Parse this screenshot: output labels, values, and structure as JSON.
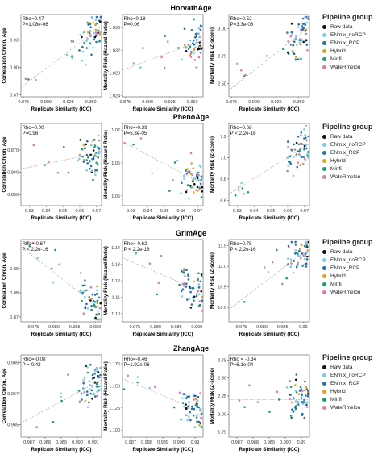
{
  "legend": {
    "title": "Pipeline group",
    "groups": [
      {
        "name": "Raw data",
        "color": "#111111"
      },
      {
        "name": "ENmix_noRCP",
        "color": "#7fcbe6"
      },
      {
        "name": "ENmix_RCP",
        "color": "#2470ad"
      },
      {
        "name": "Hybrid",
        "color": "#e3a024"
      },
      {
        "name": "Minfi",
        "color": "#1f9a6b"
      },
      {
        "name": "WateRmelon",
        "color": "#de7bb0"
      }
    ]
  },
  "chart_data": [
    {
      "clock": "HorvathAge",
      "xlabel": "Replicate Similarity (ICC)",
      "grid": false,
      "panels": [
        {
          "type": "scatter",
          "ylabel": "Correlation Chron. Age",
          "xlim": [
            0.872,
            0.962
          ],
          "ylim": [
            0.868,
            0.958
          ],
          "xticks": [
            0.875,
            0.9,
            0.925,
            0.95
          ],
          "xtick_labels": [
            "0.875",
            "0.900",
            "0.925",
            "0.950"
          ],
          "yticks": [
            0.87,
            0.9,
            0.93
          ],
          "ytick_labels": [
            "0.87",
            "0.90",
            "0.93"
          ],
          "stats": [
            "Rho=0.47",
            "P=1.08e-06"
          ],
          "trend": [
            [
              0.872,
              0.878
            ],
            [
              0.962,
              0.945
            ]
          ]
        },
        {
          "type": "scatter",
          "ylabel": "Mortality Risk (Hazard Ratio)",
          "xlim": [
            0.872,
            0.962
          ],
          "ylim": [
            1.0238,
            1.0383
          ],
          "xticks": [
            0.875,
            0.9,
            0.925,
            0.95
          ],
          "xtick_labels": [
            "0.875",
            "0.900",
            "0.925",
            "0.950"
          ],
          "yticks": [
            1.024,
            1.028,
            1.032,
            1.036
          ],
          "ytick_labels": [
            "1.024",
            "1.028",
            "1.032",
            "1.036"
          ],
          "stats": [
            "Rho=0.18",
            "P=0.06"
          ],
          "trend": [
            [
              0.872,
              1.0285
            ],
            [
              0.962,
              1.0338
            ]
          ]
        },
        {
          "type": "scatter",
          "ylabel": "Mortality Risk (Z-score)",
          "xlim": [
            0.872,
            0.962
          ],
          "ylim": [
            2.38,
            3.13
          ],
          "xticks": [
            0.875,
            0.9,
            0.925,
            0.95
          ],
          "xtick_labels": [
            "0.875",
            "0.900",
            "0.925",
            "0.950"
          ],
          "yticks": [
            2.5,
            2.75,
            3.0
          ],
          "ytick_labels": [
            "2.50",
            "2.75",
            "3.00"
          ],
          "stats": [
            "Rho=0.52",
            "P=3.3e-08"
          ],
          "trend": [
            [
              0.872,
              2.44
            ],
            [
              0.962,
              3.02
            ]
          ]
        }
      ]
    },
    {
      "clock": "PhenoAge",
      "xlabel": "Replicate Similarity (ICC)",
      "grid": false,
      "panels": [
        {
          "type": "scatter",
          "ylabel": "Correlation Chron. Age",
          "xlim": [
            0.925,
            0.973
          ],
          "ylim": [
            0.845,
            0.882
          ],
          "xticks": [
            0.93,
            0.94,
            0.95,
            0.96,
            0.97
          ],
          "xtick_labels": [
            "0.93",
            "0.94",
            "0.95",
            "0.96",
            "0.97"
          ],
          "yticks": [
            0.85,
            0.86,
            0.87
          ],
          "ytick_labels": [
            "0.850",
            "0.860",
            "0.870"
          ],
          "stats": [
            "Rho=0.00",
            "P=0.96"
          ],
          "trend": [
            [
              0.925,
              0.8615
            ],
            [
              0.973,
              0.869
            ]
          ]
        },
        {
          "type": "scatter",
          "ylabel": "Mortality Risk (Hazard Ratio)",
          "xlim": [
            0.925,
            0.973
          ],
          "ylim": [
            1.047,
            1.072
          ],
          "xticks": [
            0.93,
            0.94,
            0.95,
            0.96,
            0.97
          ],
          "xtick_labels": [
            "0.93",
            "0.94",
            "0.95",
            "0.96",
            "0.97"
          ],
          "yticks": [
            1.05,
            1.06,
            1.07
          ],
          "ytick_labels": [
            "1.05",
            "1.06",
            "1.07"
          ],
          "stats": [
            "Rho=-0.39",
            "P=5.3e-05"
          ],
          "trend": [
            [
              0.925,
              1.0665
            ],
            [
              0.973,
              1.0535
            ]
          ]
        },
        {
          "type": "scatter",
          "ylabel": "Mortality Risk (Z-score)",
          "xlim": [
            0.925,
            0.973
          ],
          "ylim": [
            6.55,
            7.32
          ],
          "xticks": [
            0.93,
            0.94,
            0.95,
            0.96,
            0.97
          ],
          "xtick_labels": [
            "0.93",
            "0.94",
            "0.95",
            "0.96",
            "0.97"
          ],
          "yticks": [
            6.6,
            6.8,
            7.0,
            7.2
          ],
          "ytick_labels": [
            "6.6",
            "6.8",
            "7.0",
            "7.2"
          ],
          "stats": [
            "Rho=0.68",
            "P < 2.2e-16"
          ],
          "trend": [
            [
              0.925,
              6.66
            ],
            [
              0.973,
              7.13
            ]
          ]
        }
      ]
    },
    {
      "clock": "GrimAge",
      "xlabel": "Replicate Similarity (ICC)",
      "grid": false,
      "panels": [
        {
          "type": "scatter",
          "ylabel": "Correlation Chron. Age",
          "xlim": [
            0.972,
            0.9915
          ],
          "ylim": [
            0.868,
            0.902
          ],
          "xticks": [
            0.975,
            0.98,
            0.985,
            0.99
          ],
          "xtick_labels": [
            "0.975",
            "0.980",
            "0.985",
            "0.990"
          ],
          "yticks": [
            0.87,
            0.88,
            0.89
          ],
          "ytick_labels": [
            "0.87",
            "0.88",
            "0.89"
          ],
          "stats": [
            "Rho=-0.67",
            "P < 2.2e-16"
          ],
          "trend": [
            [
              0.972,
              0.899
            ],
            [
              0.9915,
              0.873
            ]
          ]
        },
        {
          "type": "scatter",
          "ylabel": "Mortality Risk (Hazard Ratio)",
          "xlim": [
            0.972,
            0.9915
          ],
          "ylim": [
            1.095,
            1.145
          ],
          "xticks": [
            0.975,
            0.98,
            0.985,
            0.99
          ],
          "xtick_labels": [
            "0.975",
            "0.980",
            "0.985",
            "0.990"
          ],
          "yticks": [
            1.1,
            1.11,
            1.12,
            1.13,
            1.14
          ],
          "ytick_labels": [
            "1.10",
            "1.11",
            "1.12",
            "1.13",
            "1.14"
          ],
          "stats": [
            "Rho=-0.62",
            "P < 2.2e-16"
          ],
          "trend": [
            [
              0.972,
              1.134
            ],
            [
              0.9915,
              1.113
            ]
          ]
        },
        {
          "type": "scatter",
          "ylabel": "Mortality Risk (Z-score)",
          "xlim": [
            0.972,
            0.9915
          ],
          "ylim": [
            9.65,
            11.65
          ],
          "xticks": [
            0.975,
            0.98,
            0.985,
            0.99
          ],
          "xtick_labels": [
            "0.975",
            "0.980",
            "0.985",
            "0.99"
          ],
          "yticks": [
            10.0,
            10.5,
            11.0,
            11.5
          ],
          "ytick_labels": [
            "10.0",
            "10.5",
            "11.0",
            "11.5"
          ],
          "stats": [
            "Rho=0.75",
            "P < 2.2e-16"
          ],
          "trend": [
            [
              0.972,
              9.95
            ],
            [
              0.9915,
              11.45
            ]
          ]
        }
      ]
    },
    {
      "clock": "ZhangAge",
      "xlabel": "Replicate Similarity (ICC)",
      "grid": false,
      "panels": [
        {
          "type": "scatter",
          "ylabel": "Correlation Chron. Age",
          "xlim": [
            0.9865,
            0.9915
          ],
          "ylim": [
            0.9642,
            0.9695
          ],
          "xticks": [
            0.987,
            0.988,
            0.989,
            0.99,
            0.991
          ],
          "xtick_labels": [
            "0.987",
            "0.988",
            "0.989",
            "0.990",
            "0.991"
          ],
          "yticks": [
            0.965,
            0.967,
            0.969
          ],
          "ytick_labels": [
            "0.965",
            "0.967",
            "0.969"
          ],
          "stats": [
            "Rho=-0.08",
            "P = 0.42"
          ],
          "trend": [
            [
              0.9865,
              0.9651
            ],
            [
              0.9915,
              0.9679
            ]
          ]
        },
        {
          "type": "scatter",
          "ylabel": "Mortality Risk (Hazard Ratio)",
          "xlim": [
            0.9865,
            0.9915
          ],
          "ylim": [
            1.092,
            1.185
          ],
          "xticks": [
            0.987,
            0.988,
            0.989,
            0.99,
            0.991
          ],
          "xtick_labels": [
            "0.987",
            "0.988",
            "0.989",
            "0.990",
            "0.99"
          ],
          "yticks": [
            1.1,
            1.125,
            1.15,
            1.175
          ],
          "ytick_labels": [
            "1.100",
            "1.125",
            "1.150",
            "1.175"
          ],
          "stats": [
            "Rho=-0.46",
            "P=1.92e-06"
          ],
          "trend": [
            [
              0.9865,
              1.158
            ],
            [
              0.9915,
              1.12
            ]
          ]
        },
        {
          "type": "scatter",
          "ylabel": "Mortality Risk (Z-score)",
          "xlim": [
            0.9865,
            0.9915
          ],
          "ylim": [
            1.68,
            2.82
          ],
          "xticks": [
            0.987,
            0.988,
            0.989,
            0.99,
            0.991
          ],
          "xtick_labels": [
            "0.987",
            "0.988",
            "0.989",
            "0.990",
            "0.99"
          ],
          "yticks": [
            1.75,
            2.0,
            2.25,
            2.5,
            2.75
          ],
          "ytick_labels": [
            "1.75",
            "2.00",
            "2.25",
            "2.50",
            "2.75"
          ],
          "stats": [
            "Rho = -0.34",
            "P=6.1e-04"
          ],
          "trend": [
            [
              0.9865,
              2.2
            ],
            [
              0.9915,
              2.2
            ]
          ]
        }
      ]
    }
  ]
}
